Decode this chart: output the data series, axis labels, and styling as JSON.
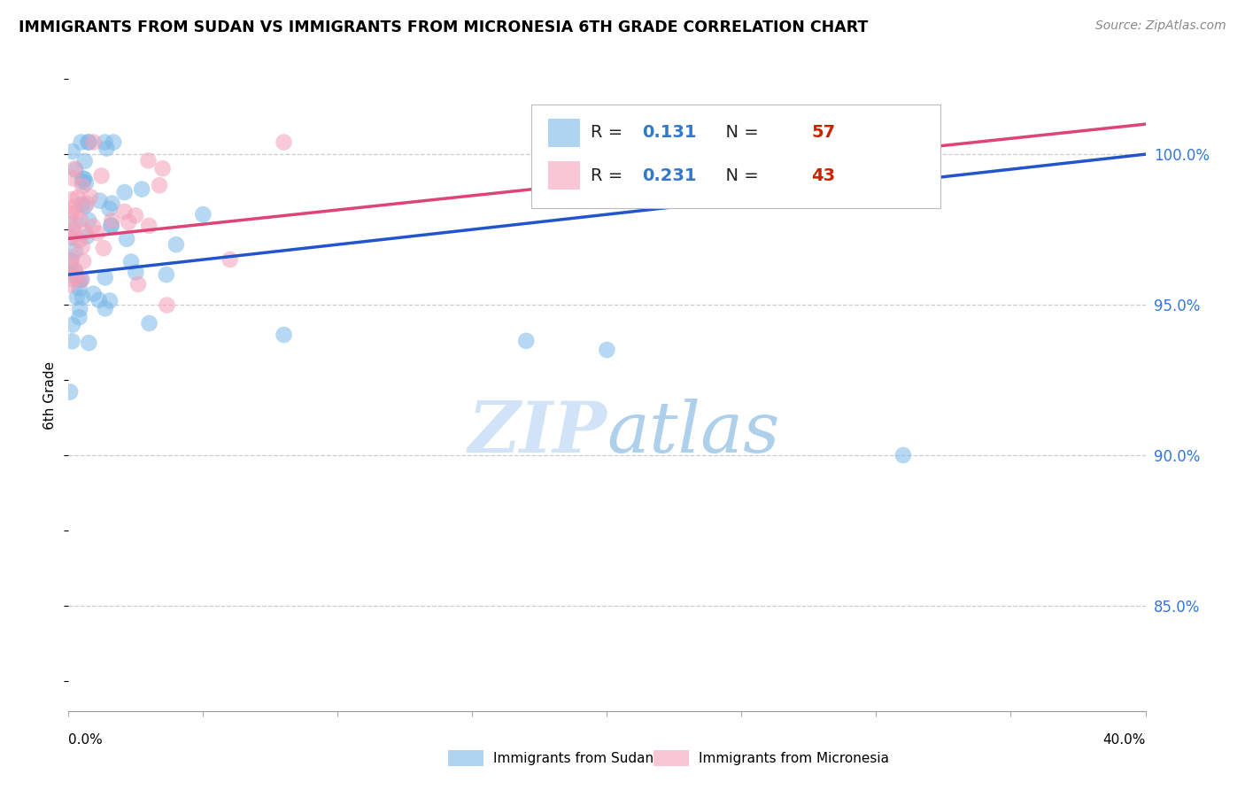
{
  "title": "IMMIGRANTS FROM SUDAN VS IMMIGRANTS FROM MICRONESIA 6TH GRADE CORRELATION CHART",
  "source": "Source: ZipAtlas.com",
  "ylabel": "6th Grade",
  "ytick_vals": [
    0.85,
    0.9,
    0.95,
    1.0
  ],
  "ytick_labels": [
    "85.0%",
    "90.0%",
    "95.0%",
    "100.0%"
  ],
  "xlim": [
    0.0,
    0.4
  ],
  "ylim": [
    0.815,
    1.025
  ],
  "sudan_color": "#7ab8e8",
  "micronesia_color": "#f4a0b8",
  "sudan_R": 0.131,
  "sudan_N": 57,
  "micronesia_R": 0.231,
  "micronesia_N": 43,
  "sudan_line_color": "#2255cc",
  "micronesia_line_color": "#dd4477",
  "legend_R_color": "#3377cc",
  "legend_N_color": "#cc2200",
  "watermark_color": "#cce0f5",
  "legend_label1": "Immigrants from Sudan",
  "legend_label2": "Immigrants from Micronesia",
  "background_color": "#ffffff",
  "sudan_line_y0": 0.96,
  "sudan_line_y1": 1.0,
  "micronesia_line_y0": 0.972,
  "micronesia_line_y1": 1.01
}
